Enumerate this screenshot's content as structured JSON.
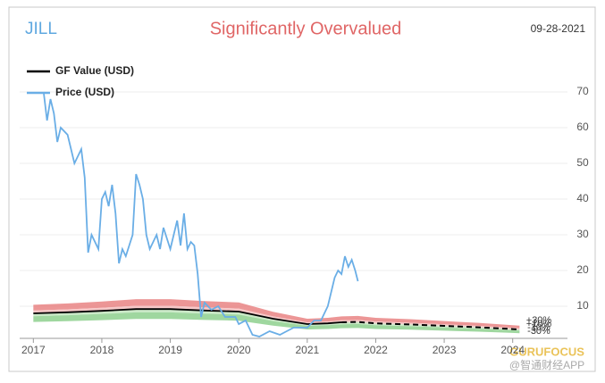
{
  "chart_data": {
    "type": "line",
    "ticker": "JILL",
    "title": "Significantly Overvalued",
    "date": "09-28-2021",
    "watermark": "@智通财经APP",
    "logo": "GURUFOCUS",
    "xlim": [
      2016.8,
      2024.8
    ],
    "xticks": [
      2017,
      2018,
      2019,
      2020,
      2021,
      2022,
      2023,
      2024
    ],
    "ylim": [
      1,
      75
    ],
    "yticks": [
      10,
      20,
      30,
      40,
      50,
      60,
      70
    ],
    "grid": true,
    "bands": [
      {
        "value": 30,
        "label": "+30%"
      },
      {
        "value": 10,
        "label": "+10%"
      },
      {
        "value": -10,
        "label": "-10%"
      },
      {
        "value": -30,
        "label": "-30%"
      }
    ],
    "series": [
      {
        "name": "GF Value (USD)",
        "color": "#000000",
        "x": [
          2017,
          2017.5,
          2018,
          2018.5,
          2019,
          2019.5,
          2020,
          2020.5,
          2021,
          2021.3,
          2021.5,
          2021.74,
          2022,
          2022.5,
          2023,
          2023.5,
          2024,
          2024.1
        ],
        "values": [
          8,
          8.3,
          8.7,
          9.2,
          9.2,
          8.8,
          8.5,
          6.5,
          5,
          5.2,
          5.5,
          5.6,
          5.2,
          4.9,
          4.5,
          4.1,
          3.6,
          3.5
        ]
      },
      {
        "name": "Price (USD)",
        "color": "#6aaee6",
        "x": [
          2017.15,
          2017.2,
          2017.25,
          2017.3,
          2017.35,
          2017.4,
          2017.5,
          2017.6,
          2017.7,
          2017.75,
          2017.8,
          2017.85,
          2017.95,
          2018.0,
          2018.05,
          2018.1,
          2018.15,
          2018.2,
          2018.25,
          2018.3,
          2018.35,
          2018.45,
          2018.5,
          2018.55,
          2018.6,
          2018.65,
          2018.7,
          2018.8,
          2018.85,
          2018.9,
          2019.0,
          2019.05,
          2019.1,
          2019.15,
          2019.2,
          2019.25,
          2019.3,
          2019.35,
          2019.4,
          2019.45,
          2019.5,
          2019.6,
          2019.7,
          2019.8,
          2019.95,
          2020.0,
          2020.1,
          2020.2,
          2020.3,
          2020.45,
          2020.6,
          2020.7,
          2020.8,
          2021.0,
          2021.1,
          2021.2,
          2021.3,
          2021.4,
          2021.45,
          2021.5,
          2021.55,
          2021.6,
          2021.65,
          2021.7,
          2021.74
        ],
        "values": [
          70,
          62,
          68,
          64,
          56,
          60,
          58,
          50,
          54,
          46,
          25,
          30,
          26,
          40,
          42,
          38,
          44,
          36,
          22,
          26,
          24,
          30,
          47,
          44,
          40,
          30,
          26,
          30,
          26,
          32,
          26,
          30,
          34,
          27,
          36,
          26,
          28,
          27,
          19,
          7,
          11,
          9,
          10,
          7,
          7,
          5,
          6,
          2,
          1.5,
          3,
          2,
          3,
          4,
          4,
          6,
          6,
          10,
          18,
          20,
          19,
          24,
          21,
          23,
          20,
          17
        ]
      }
    ]
  }
}
